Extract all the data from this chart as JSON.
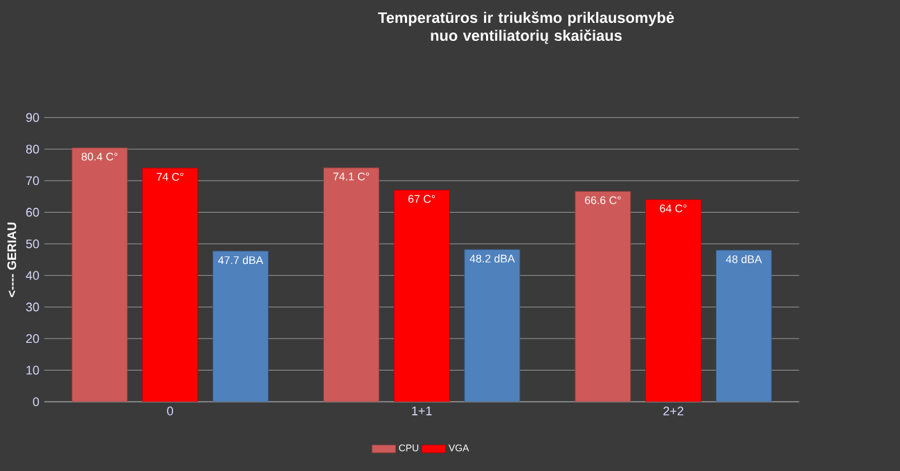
{
  "chart_data": {
    "type": "bar",
    "title": "Temperatūros ir triukšmo priklausomybė  nuo ventiliatorių skaičiaus",
    "ylabel": "<---- GERIAU",
    "categories": [
      "0",
      "1+1",
      "2+2"
    ],
    "series": [
      {
        "name": "CPU",
        "color": "#cd5a58",
        "values": [
          80.4,
          74.1,
          66.6
        ],
        "value_labels": [
          "80.4 C°",
          "74.1 C°",
          "66.6 C°"
        ]
      },
      {
        "name": "VGA",
        "color": "#ff0000",
        "values": [
          74,
          67,
          64
        ],
        "value_labels": [
          "74 C°",
          "67 C°",
          "64 C°"
        ]
      },
      {
        "color": "#4f81bd",
        "values": [
          47.7,
          48.2,
          48
        ],
        "value_labels": [
          "47.7 dBA",
          "48.2 dBA",
          "48 dBA"
        ]
      }
    ],
    "ylim": [
      0,
      90
    ],
    "yticks": [
      0,
      10,
      20,
      30,
      40,
      50,
      60,
      70,
      80,
      90
    ],
    "grid": "y",
    "legend": "bottom"
  }
}
